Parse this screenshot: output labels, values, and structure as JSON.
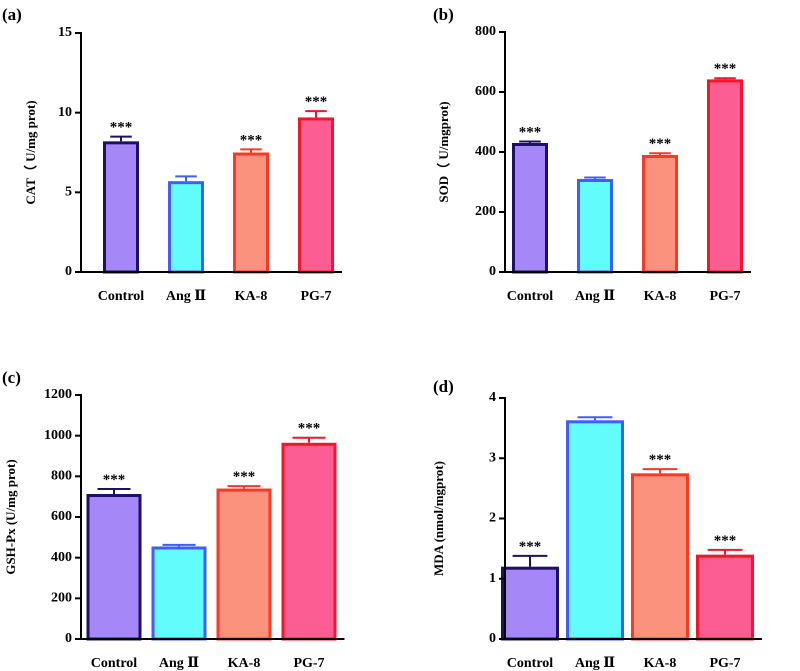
{
  "chart_data": [
    {
      "type": "bar",
      "panel_label": "(a)",
      "ylabel": "CAT（ U/mg prot)",
      "categories": [
        "Control",
        "Ang Ⅱ",
        "KA-8",
        "PG-7"
      ],
      "values": [
        8.2,
        5.7,
        7.5,
        9.7
      ],
      "errors": [
        0.3,
        0.3,
        0.2,
        0.4
      ],
      "significance": [
        "***",
        "",
        "***",
        "***"
      ],
      "ylim": [
        0,
        15
      ],
      "yticks": [
        0,
        5,
        10,
        15
      ],
      "ytick_labels": [
        "0",
        "5",
        "10",
        "15"
      ]
    },
    {
      "type": "bar",
      "panel_label": "(b)",
      "ylabel": "SOD（ U/mgprot)",
      "categories": [
        "Control",
        "Ang Ⅱ",
        "KA-8",
        "PG-7"
      ],
      "values": [
        430,
        310,
        390,
        642
      ],
      "errors": [
        5,
        5,
        6,
        4
      ],
      "significance": [
        "***",
        "",
        "***",
        "***"
      ],
      "ylim": [
        0,
        800
      ],
      "yticks": [
        0,
        200,
        400,
        600,
        800
      ],
      "ytick_labels": [
        "0",
        "200",
        "400",
        "600",
        "800"
      ]
    },
    {
      "type": "bar",
      "panel_label": "(c)",
      "ylabel": "GSH-Px (U/mg prot)",
      "categories": [
        "Control",
        "Ang Ⅱ",
        "KA-8",
        "PG-7"
      ],
      "values": [
        713,
        455,
        740,
        965
      ],
      "errors": [
        25,
        8,
        12,
        25
      ],
      "significance": [
        "***",
        "",
        "***",
        "***"
      ],
      "ylim": [
        0,
        1200
      ],
      "yticks": [
        0,
        200,
        400,
        600,
        800,
        1000,
        1200
      ],
      "ytick_labels": [
        "0",
        "200",
        "400",
        "600",
        "800",
        "1000",
        "1200"
      ]
    },
    {
      "type": "bar",
      "panel_label": "(d)",
      "ylabel": "MDA (nmol/mgprot)",
      "categories": [
        "Control",
        "Ang Ⅱ",
        "KA-8",
        "PG-7"
      ],
      "values": [
        1.2,
        3.63,
        2.75,
        1.4
      ],
      "errors": [
        0.18,
        0.05,
        0.07,
        0.08
      ],
      "significance": [
        "***",
        "",
        "***",
        "***"
      ],
      "ylim": [
        0,
        4
      ],
      "yticks": [
        0,
        1,
        2,
        3,
        4
      ],
      "ytick_labels": [
        "0",
        "1",
        "2",
        "3",
        "4"
      ]
    }
  ],
  "bar_colors": {
    "fills": [
      "#a587f7",
      "#61fcfb",
      "#fb927e",
      "#fc5d92"
    ],
    "edges": [
      "#1c1067",
      "#3f5efb",
      "#f83a25",
      "#f1162d"
    ]
  }
}
